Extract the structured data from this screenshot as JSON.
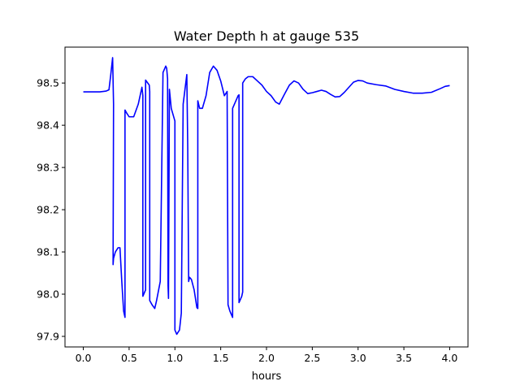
{
  "chart_data": {
    "type": "line",
    "title": "Water Depth h at gauge 535",
    "xlabel": "hours",
    "ylabel": "",
    "xlim": [
      -0.2,
      4.2
    ],
    "ylim": [
      97.875,
      98.585
    ],
    "xticks": [
      0.0,
      0.5,
      1.0,
      1.5,
      2.0,
      2.5,
      3.0,
      3.5,
      4.0
    ],
    "xtick_labels": [
      "0.0",
      "0.5",
      "1.0",
      "1.5",
      "2.0",
      "2.5",
      "3.0",
      "3.5",
      "4.0"
    ],
    "yticks": [
      97.9,
      98.0,
      98.1,
      98.2,
      98.3,
      98.4,
      98.5
    ],
    "ytick_labels": [
      "97.9",
      "98.0",
      "98.1",
      "98.2",
      "98.3",
      "98.4",
      "98.5"
    ],
    "grid": false,
    "series": [
      {
        "color": "#0000ff",
        "x": [
          0.0,
          0.1,
          0.18,
          0.25,
          0.28,
          0.3,
          0.32,
          0.33,
          0.325,
          0.33,
          0.35,
          0.38,
          0.4,
          0.42,
          0.44,
          0.455,
          0.455,
          0.47,
          0.5,
          0.55,
          0.6,
          0.64,
          0.65,
          0.65,
          0.68,
          0.68,
          0.72,
          0.725,
          0.725,
          0.75,
          0.78,
          0.8,
          0.84,
          0.87,
          0.9,
          0.91,
          0.92,
          0.925,
          0.93,
          0.94,
          0.96,
          1.0,
          1.0,
          1.02,
          1.05,
          1.07,
          1.09,
          1.11,
          1.13,
          1.14,
          1.15,
          1.16,
          1.18,
          1.21,
          1.24,
          1.25,
          1.25,
          1.27,
          1.3,
          1.34,
          1.38,
          1.42,
          1.46,
          1.5,
          1.54,
          1.57,
          1.58,
          1.6,
          1.63,
          1.63,
          1.66,
          1.69,
          1.7,
          1.7,
          1.73,
          1.74,
          1.74,
          1.77,
          1.8,
          1.85,
          1.9,
          1.95,
          2.0,
          2.05,
          2.1,
          2.14,
          2.2,
          2.25,
          2.3,
          2.35,
          2.4,
          2.45,
          2.5,
          2.55,
          2.6,
          2.65,
          2.7,
          2.75,
          2.8,
          2.85,
          2.9,
          2.95,
          3.0,
          3.05,
          3.1,
          3.2,
          3.3,
          3.4,
          3.5,
          3.6,
          3.7,
          3.8,
          3.9,
          3.95,
          4.0
        ],
        "y": [
          98.479,
          98.479,
          98.479,
          98.481,
          98.484,
          98.52,
          98.56,
          98.45,
          98.07,
          98.085,
          98.1,
          98.11,
          98.11,
          98.03,
          97.96,
          97.945,
          98.436,
          98.43,
          98.42,
          98.42,
          98.45,
          98.49,
          98.47,
          97.995,
          98.01,
          98.507,
          98.495,
          98.48,
          97.985,
          97.975,
          97.966,
          97.985,
          98.03,
          98.525,
          98.54,
          98.535,
          98.51,
          98.02,
          97.99,
          98.485,
          98.44,
          98.41,
          97.915,
          97.905,
          97.915,
          97.955,
          98.45,
          98.485,
          98.52,
          98.35,
          98.03,
          98.04,
          98.035,
          98.01,
          97.968,
          97.966,
          98.458,
          98.44,
          98.44,
          98.47,
          98.525,
          98.54,
          98.53,
          98.505,
          98.47,
          98.48,
          97.975,
          97.96,
          97.945,
          98.44,
          98.455,
          98.47,
          98.472,
          97.98,
          97.995,
          98.005,
          98.5,
          98.51,
          98.515,
          98.515,
          98.505,
          98.495,
          98.48,
          98.47,
          98.455,
          98.45,
          98.475,
          98.495,
          98.505,
          98.5,
          98.485,
          98.475,
          98.477,
          98.48,
          98.483,
          98.48,
          98.473,
          98.467,
          98.468,
          98.478,
          98.49,
          98.502,
          98.506,
          98.505,
          98.5,
          98.496,
          98.493,
          98.485,
          98.48,
          98.476,
          98.476,
          98.478,
          98.487,
          98.492,
          98.494
        ]
      }
    ]
  }
}
